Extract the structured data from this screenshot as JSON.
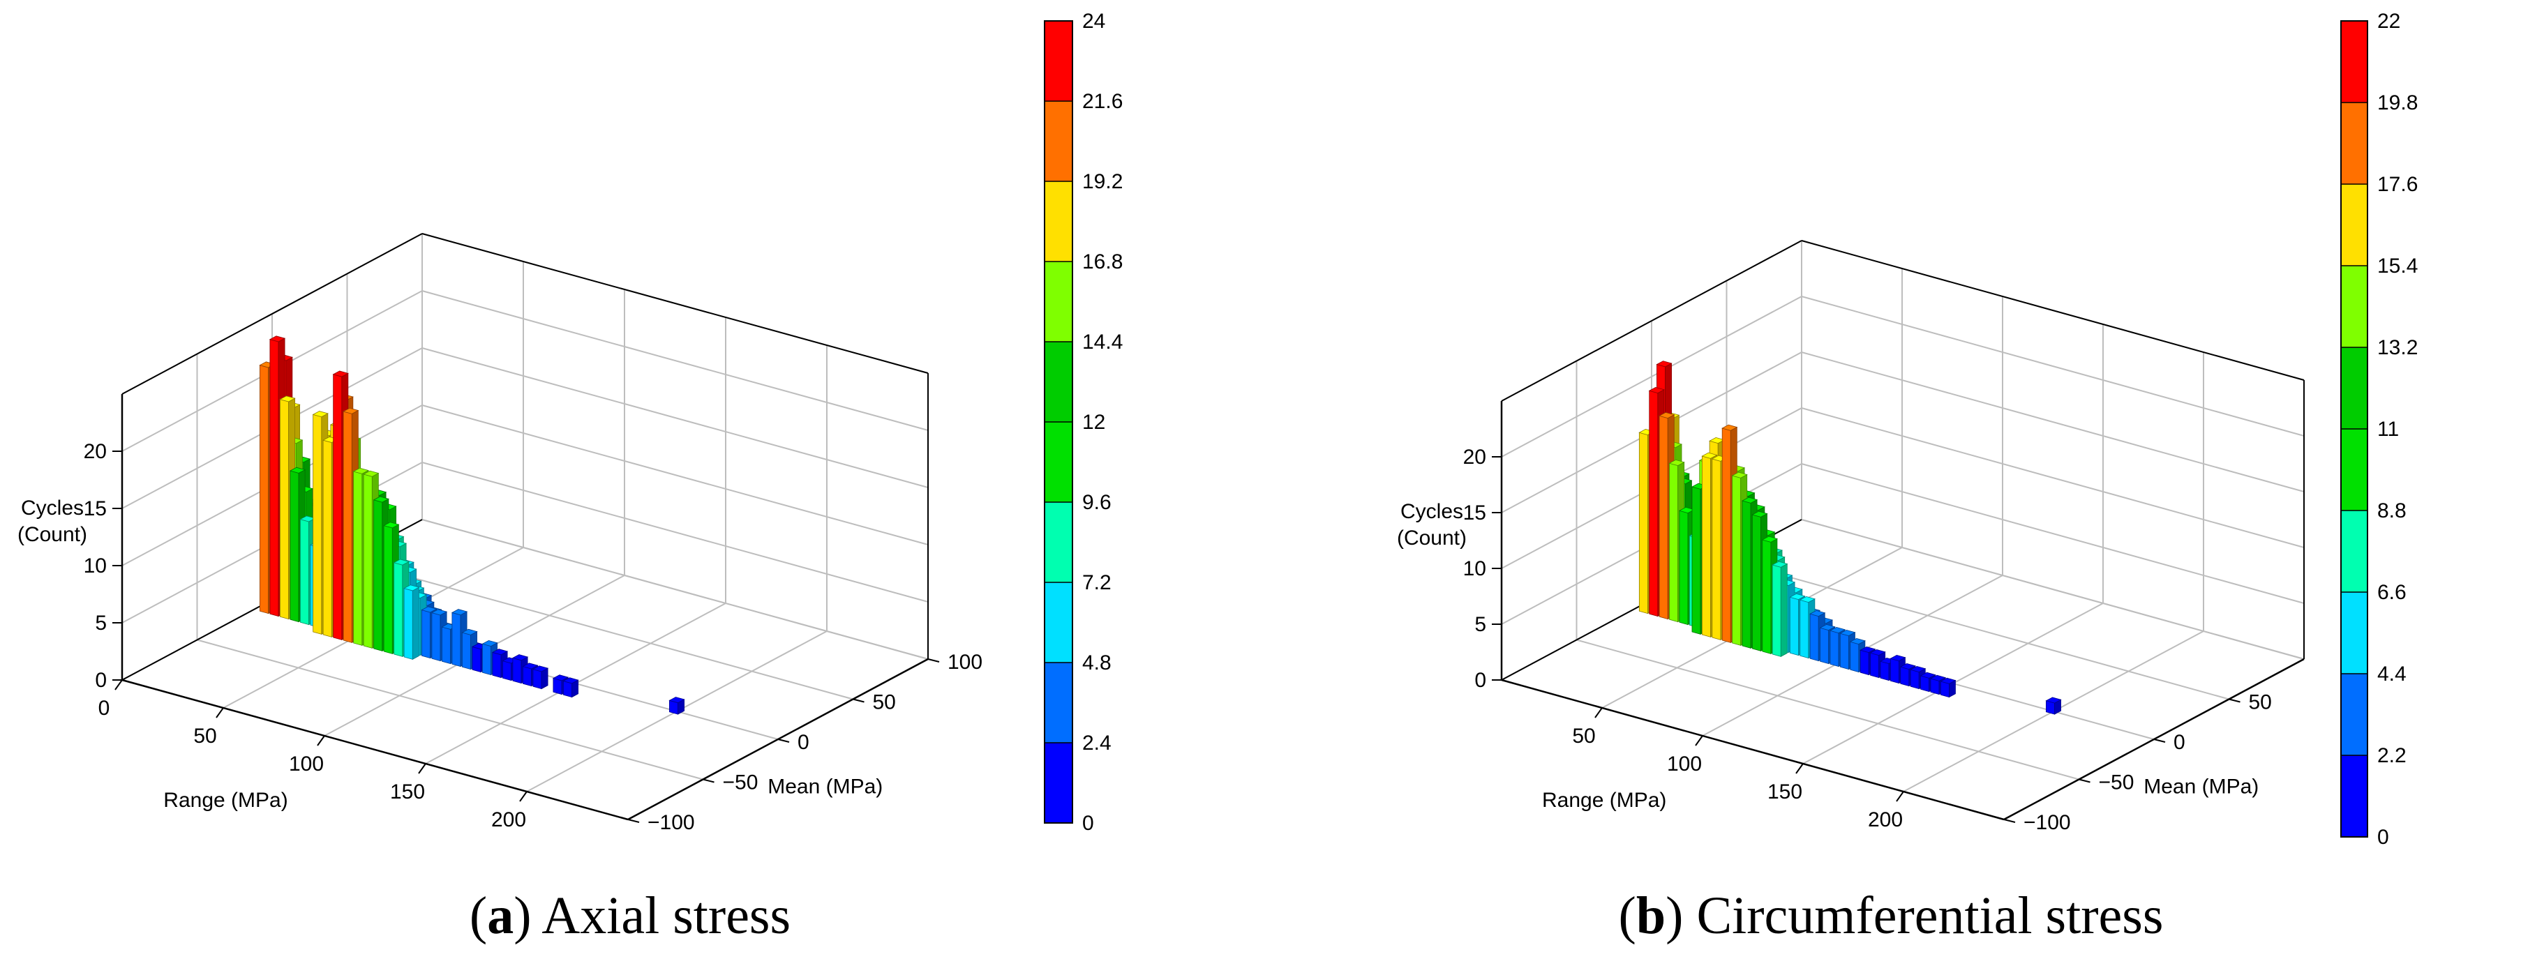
{
  "chart_data": [
    {
      "type": "3d-bar",
      "panel_label": "a",
      "caption": "Axial stress",
      "zlabel": [
        "Cycles",
        "(Count)"
      ],
      "xlabel": "Range (MPa)",
      "ylabel": "Mean (MPa)",
      "x_ticks": [
        "0",
        "50",
        "100",
        "150",
        "200"
      ],
      "y_ticks": [
        "−100",
        "−50",
        "0",
        "50",
        "100"
      ],
      "z_ticks": [
        "0",
        "5",
        "10",
        "15",
        "20"
      ],
      "xlim": [
        0,
        250
      ],
      "ylim": [
        -100,
        100
      ],
      "zlim": [
        0,
        25
      ],
      "colorbar": {
        "levels": [
          "0",
          "2.4",
          "4.8",
          "7.2",
          "9.6",
          "12",
          "14.4",
          "16.8",
          "19.2",
          "21.6",
          "24"
        ],
        "colors": [
          "#0000ff",
          "#006eff",
          "#00e0ff",
          "#00ffb0",
          "#00e000",
          "#00cc00",
          "#7fff00",
          "#ffe000",
          "#ff7000",
          "#ff0000"
        ]
      },
      "bars": [
        {
          "x": 5,
          "y": -10,
          "z": 21.5
        },
        {
          "x": 5,
          "y": -5,
          "z": 14.5
        },
        {
          "x": 5,
          "y": 0,
          "z": 8.5
        },
        {
          "x": 5,
          "y": 5,
          "z": 4.5
        },
        {
          "x": 5,
          "y": 10,
          "z": 2.2
        },
        {
          "x": 10,
          "y": -10,
          "z": 24
        },
        {
          "x": 10,
          "y": -5,
          "z": 22
        },
        {
          "x": 10,
          "y": 0,
          "z": 17.5
        },
        {
          "x": 10,
          "y": 5,
          "z": 11
        },
        {
          "x": 10,
          "y": 10,
          "z": 5.5
        },
        {
          "x": 10,
          "y": 15,
          "z": 2.4
        },
        {
          "x": 15,
          "y": -10,
          "z": 19
        },
        {
          "x": 15,
          "y": -5,
          "z": 15
        },
        {
          "x": 15,
          "y": 0,
          "z": 13
        },
        {
          "x": 15,
          "y": 5,
          "z": 9
        },
        {
          "x": 15,
          "y": 10,
          "z": 5
        },
        {
          "x": 15,
          "y": 15,
          "z": 3
        },
        {
          "x": 20,
          "y": -10,
          "z": 13
        },
        {
          "x": 20,
          "y": -5,
          "z": 11
        },
        {
          "x": 20,
          "y": 0,
          "z": 9
        },
        {
          "x": 20,
          "y": 5,
          "z": 6
        },
        {
          "x": 20,
          "y": 10,
          "z": 4
        },
        {
          "x": 25,
          "y": -10,
          "z": 9
        },
        {
          "x": 25,
          "y": -5,
          "z": 8
        },
        {
          "x": 25,
          "y": 0,
          "z": 6
        },
        {
          "x": 25,
          "y": 5,
          "z": 4
        },
        {
          "x": 25,
          "y": 10,
          "z": 2.6
        },
        {
          "x": 30,
          "y": -10,
          "z": 7
        },
        {
          "x": 30,
          "y": -5,
          "z": 6
        },
        {
          "x": 30,
          "y": 0,
          "z": 4.5
        },
        {
          "x": 30,
          "y": 5,
          "z": 3
        },
        {
          "x": 35,
          "y": -15,
          "z": 19
        },
        {
          "x": 35,
          "y": -10,
          "z": 17
        },
        {
          "x": 35,
          "y": -5,
          "z": 14
        },
        {
          "x": 35,
          "y": 0,
          "z": 11
        },
        {
          "x": 35,
          "y": 5,
          "z": 8
        },
        {
          "x": 35,
          "y": 10,
          "z": 5
        },
        {
          "x": 35,
          "y": 15,
          "z": 3
        },
        {
          "x": 40,
          "y": -15,
          "z": 17
        },
        {
          "x": 40,
          "y": -10,
          "z": 18
        },
        {
          "x": 40,
          "y": -5,
          "z": 20
        },
        {
          "x": 40,
          "y": 0,
          "z": 16
        },
        {
          "x": 40,
          "y": 5,
          "z": 11
        },
        {
          "x": 40,
          "y": 10,
          "z": 7
        },
        {
          "x": 40,
          "y": 15,
          "z": 4
        },
        {
          "x": 45,
          "y": -15,
          "z": 23
        },
        {
          "x": 45,
          "y": -10,
          "z": 16
        },
        {
          "x": 45,
          "y": -5,
          "z": 12
        },
        {
          "x": 45,
          "y": 0,
          "z": 9
        },
        {
          "x": 45,
          "y": 5,
          "z": 6
        },
        {
          "x": 45,
          "y": 10,
          "z": 4
        },
        {
          "x": 50,
          "y": -15,
          "z": 20
        },
        {
          "x": 50,
          "y": -10,
          "z": 14
        },
        {
          "x": 50,
          "y": -5,
          "z": 13
        },
        {
          "x": 50,
          "y": 0,
          "z": 10
        },
        {
          "x": 50,
          "y": 5,
          "z": 7
        },
        {
          "x": 50,
          "y": 10,
          "z": 5
        },
        {
          "x": 55,
          "y": -15,
          "z": 15
        },
        {
          "x": 55,
          "y": -10,
          "z": 13
        },
        {
          "x": 55,
          "y": -5,
          "z": 12
        },
        {
          "x": 55,
          "y": 0,
          "z": 9
        },
        {
          "x": 55,
          "y": 5,
          "z": 6
        },
        {
          "x": 60,
          "y": -15,
          "z": 15
        },
        {
          "x": 60,
          "y": -10,
          "z": 13
        },
        {
          "x": 60,
          "y": -5,
          "z": 10
        },
        {
          "x": 60,
          "y": 0,
          "z": 8
        },
        {
          "x": 60,
          "y": 5,
          "z": 5
        },
        {
          "x": 65,
          "y": -15,
          "z": 13
        },
        {
          "x": 65,
          "y": -10,
          "z": 12
        },
        {
          "x": 65,
          "y": -5,
          "z": 9
        },
        {
          "x": 65,
          "y": 0,
          "z": 6
        },
        {
          "x": 65,
          "y": 5,
          "z": 4
        },
        {
          "x": 70,
          "y": -15,
          "z": 11
        },
        {
          "x": 70,
          "y": -10,
          "z": 9
        },
        {
          "x": 70,
          "y": -5,
          "z": 7
        },
        {
          "x": 70,
          "y": 0,
          "z": 5
        },
        {
          "x": 70,
          "y": 5,
          "z": 3
        },
        {
          "x": 75,
          "y": -15,
          "z": 8
        },
        {
          "x": 75,
          "y": -10,
          "z": 7
        },
        {
          "x": 75,
          "y": -5,
          "z": 5
        },
        {
          "x": 75,
          "y": 0,
          "z": 4
        },
        {
          "x": 80,
          "y": -15,
          "z": 6
        },
        {
          "x": 80,
          "y": -10,
          "z": 5
        },
        {
          "x": 80,
          "y": -5,
          "z": 4
        },
        {
          "x": 80,
          "y": 0,
          "z": 3
        },
        {
          "x": 85,
          "y": -10,
          "z": 4
        },
        {
          "x": 85,
          "y": -5,
          "z": 3
        },
        {
          "x": 90,
          "y": -10,
          "z": 4
        },
        {
          "x": 90,
          "y": -5,
          "z": 2.5
        },
        {
          "x": 95,
          "y": -10,
          "z": 3
        },
        {
          "x": 95,
          "y": -5,
          "z": 2
        },
        {
          "x": 100,
          "y": -10,
          "z": 4.5
        },
        {
          "x": 100,
          "y": -5,
          "z": 2
        },
        {
          "x": 105,
          "y": -10,
          "z": 3
        },
        {
          "x": 105,
          "y": -5,
          "z": 1.5
        },
        {
          "x": 110,
          "y": -10,
          "z": 2
        },
        {
          "x": 115,
          "y": -10,
          "z": 2.5
        },
        {
          "x": 120,
          "y": -10,
          "z": 2
        },
        {
          "x": 125,
          "y": -10,
          "z": 1.5
        },
        {
          "x": 130,
          "y": -10,
          "z": 2
        },
        {
          "x": 135,
          "y": -10,
          "z": 1.5
        },
        {
          "x": 140,
          "y": -10,
          "z": 1.5
        },
        {
          "x": 150,
          "y": -10,
          "z": 1.2
        },
        {
          "x": 155,
          "y": -10,
          "z": 1.2
        },
        {
          "x": 200,
          "y": 0,
          "z": 1
        }
      ]
    },
    {
      "type": "3d-bar",
      "panel_label": "b",
      "caption": "Circumferential stress",
      "zlabel": [
        "Cycles",
        "(Count)"
      ],
      "xlabel": "Range (MPa)",
      "ylabel": "Mean (MPa)",
      "x_ticks": [
        "50",
        "100",
        "150",
        "200"
      ],
      "y_ticks": [
        "−100",
        "−50",
        "0",
        "50"
      ],
      "z_ticks": [
        "0",
        "5",
        "10",
        "15",
        "20"
      ],
      "xlim": [
        0,
        250
      ],
      "ylim": [
        -100,
        100
      ],
      "zlim": [
        0,
        25
      ],
      "colorbar": {
        "levels": [
          "0",
          "2.2",
          "4.4",
          "6.6",
          "8.8",
          "11",
          "13.2",
          "15.4",
          "17.6",
          "19.8",
          "22"
        ],
        "colors": [
          "#0000ff",
          "#006eff",
          "#00e0ff",
          "#00ffb0",
          "#00e000",
          "#00cc00",
          "#7fff00",
          "#ffe000",
          "#ff7000",
          "#ff0000"
        ]
      },
      "bars": [
        {
          "x": 5,
          "y": -10,
          "z": 16
        },
        {
          "x": 5,
          "y": -5,
          "z": 12
        },
        {
          "x": 5,
          "y": 0,
          "z": 8
        },
        {
          "x": 5,
          "y": 5,
          "z": 4
        },
        {
          "x": 5,
          "y": 10,
          "z": 2
        },
        {
          "x": 10,
          "y": -10,
          "z": 20
        },
        {
          "x": 10,
          "y": -5,
          "z": 22
        },
        {
          "x": 10,
          "y": 0,
          "z": 17
        },
        {
          "x": 10,
          "y": 5,
          "z": 11
        },
        {
          "x": 10,
          "y": 10,
          "z": 5
        },
        {
          "x": 10,
          "y": 15,
          "z": 2
        },
        {
          "x": 15,
          "y": -10,
          "z": 18
        },
        {
          "x": 15,
          "y": -5,
          "z": 15
        },
        {
          "x": 15,
          "y": 0,
          "z": 12
        },
        {
          "x": 15,
          "y": 5,
          "z": 8
        },
        {
          "x": 15,
          "y": 10,
          "z": 4
        },
        {
          "x": 20,
          "y": -10,
          "z": 14
        },
        {
          "x": 20,
          "y": -5,
          "z": 12
        },
        {
          "x": 20,
          "y": 0,
          "z": 9
        },
        {
          "x": 20,
          "y": 5,
          "z": 6
        },
        {
          "x": 20,
          "y": 10,
          "z": 3
        },
        {
          "x": 25,
          "y": -10,
          "z": 10
        },
        {
          "x": 25,
          "y": -5,
          "z": 8
        },
        {
          "x": 25,
          "y": 0,
          "z": 6
        },
        {
          "x": 25,
          "y": 5,
          "z": 4
        },
        {
          "x": 30,
          "y": -10,
          "z": 8
        },
        {
          "x": 30,
          "y": -5,
          "z": 6
        },
        {
          "x": 30,
          "y": 0,
          "z": 4
        },
        {
          "x": 30,
          "y": 5,
          "z": 3
        },
        {
          "x": 35,
          "y": -15,
          "z": 13
        },
        {
          "x": 35,
          "y": -10,
          "z": 15
        },
        {
          "x": 35,
          "y": -5,
          "z": 12
        },
        {
          "x": 35,
          "y": 0,
          "z": 9
        },
        {
          "x": 35,
          "y": 5,
          "z": 6
        },
        {
          "x": 35,
          "y": 10,
          "z": 4
        },
        {
          "x": 40,
          "y": -15,
          "z": 16
        },
        {
          "x": 40,
          "y": -10,
          "z": 17
        },
        {
          "x": 40,
          "y": -5,
          "z": 13
        },
        {
          "x": 40,
          "y": 0,
          "z": 10
        },
        {
          "x": 40,
          "y": 5,
          "z": 7
        },
        {
          "x": 40,
          "y": 10,
          "z": 4
        },
        {
          "x": 45,
          "y": -15,
          "z": 16
        },
        {
          "x": 45,
          "y": -10,
          "z": 14
        },
        {
          "x": 45,
          "y": -5,
          "z": 12
        },
        {
          "x": 45,
          "y": 0,
          "z": 9
        },
        {
          "x": 45,
          "y": 5,
          "z": 6
        },
        {
          "x": 45,
          "y": 10,
          "z": 3
        },
        {
          "x": 50,
          "y": -15,
          "z": 19
        },
        {
          "x": 50,
          "y": -10,
          "z": 15
        },
        {
          "x": 50,
          "y": -5,
          "z": 11
        },
        {
          "x": 50,
          "y": 0,
          "z": 8
        },
        {
          "x": 50,
          "y": 5,
          "z": 5
        },
        {
          "x": 55,
          "y": -15,
          "z": 15
        },
        {
          "x": 55,
          "y": -10,
          "z": 13
        },
        {
          "x": 55,
          "y": -5,
          "z": 10
        },
        {
          "x": 55,
          "y": 0,
          "z": 8
        },
        {
          "x": 55,
          "y": 5,
          "z": 5
        },
        {
          "x": 60,
          "y": -15,
          "z": 13
        },
        {
          "x": 60,
          "y": -10,
          "z": 12
        },
        {
          "x": 60,
          "y": -5,
          "z": 9
        },
        {
          "x": 60,
          "y": 0,
          "z": 6
        },
        {
          "x": 60,
          "y": 5,
          "z": 4
        },
        {
          "x": 65,
          "y": -15,
          "z": 12
        },
        {
          "x": 65,
          "y": -10,
          "z": 10
        },
        {
          "x": 65,
          "y": -5,
          "z": 8
        },
        {
          "x": 65,
          "y": 0,
          "z": 5
        },
        {
          "x": 65,
          "y": 5,
          "z": 3
        },
        {
          "x": 70,
          "y": -15,
          "z": 10
        },
        {
          "x": 70,
          "y": -10,
          "z": 8
        },
        {
          "x": 70,
          "y": -5,
          "z": 6
        },
        {
          "x": 70,
          "y": 0,
          "z": 4
        },
        {
          "x": 75,
          "y": -15,
          "z": 8
        },
        {
          "x": 75,
          "y": -10,
          "z": 6
        },
        {
          "x": 75,
          "y": -5,
          "z": 5
        },
        {
          "x": 75,
          "y": 0,
          "z": 3
        },
        {
          "x": 80,
          "y": -10,
          "z": 5
        },
        {
          "x": 80,
          "y": -5,
          "z": 4
        },
        {
          "x": 80,
          "y": 0,
          "z": 3
        },
        {
          "x": 85,
          "y": -10,
          "z": 5
        },
        {
          "x": 85,
          "y": -5,
          "z": 3
        },
        {
          "x": 90,
          "y": -10,
          "z": 4
        },
        {
          "x": 90,
          "y": -5,
          "z": 3
        },
        {
          "x": 95,
          "y": -10,
          "z": 3
        },
        {
          "x": 95,
          "y": -5,
          "z": 2
        },
        {
          "x": 100,
          "y": -10,
          "z": 3
        },
        {
          "x": 100,
          "y": -5,
          "z": 2
        },
        {
          "x": 105,
          "y": -10,
          "z": 3
        },
        {
          "x": 110,
          "y": -10,
          "z": 2.5
        },
        {
          "x": 115,
          "y": -10,
          "z": 2
        },
        {
          "x": 120,
          "y": -10,
          "z": 2
        },
        {
          "x": 125,
          "y": -10,
          "z": 1.5
        },
        {
          "x": 130,
          "y": -10,
          "z": 2
        },
        {
          "x": 135,
          "y": -10,
          "z": 1.5
        },
        {
          "x": 140,
          "y": -10,
          "z": 1.5
        },
        {
          "x": 145,
          "y": -10,
          "z": 1.2
        },
        {
          "x": 150,
          "y": -10,
          "z": 1.2
        },
        {
          "x": 155,
          "y": -10,
          "z": 1.2
        },
        {
          "x": 200,
          "y": 0,
          "z": 1
        }
      ]
    }
  ]
}
